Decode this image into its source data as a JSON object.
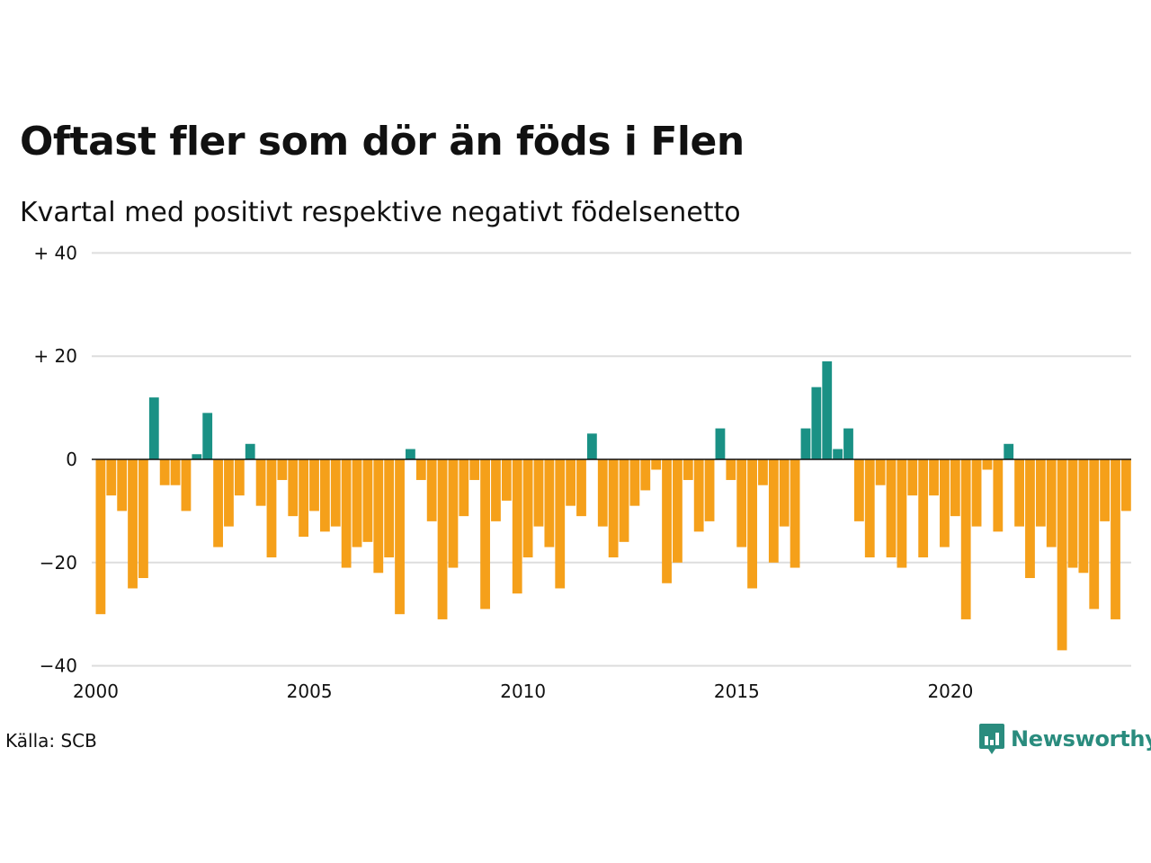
{
  "header": {
    "title": "Oftast fler som dör än föds i Flen",
    "subtitle": "Kvartal med positivt respektive negativt födelsenetto"
  },
  "footer": {
    "source": "Källa: SCB",
    "brand": "Newsworthy"
  },
  "colors": {
    "positive": "#1a9185",
    "negative": "#f5a01a",
    "grid": "#dddddd",
    "brand": "#2a8c7e"
  },
  "chart_data": {
    "type": "bar",
    "y_ticks": [
      {
        "value": 40,
        "label": "+ 40"
      },
      {
        "value": 20,
        "label": "+ 20"
      },
      {
        "value": 0,
        "label": "0"
      },
      {
        "value": -20,
        "label": "−20"
      },
      {
        "value": -40,
        "label": "−40"
      }
    ],
    "x_ticks": [
      {
        "year": 2000,
        "label": "2000"
      },
      {
        "year": 2005,
        "label": "2005"
      },
      {
        "year": 2010,
        "label": "2010"
      },
      {
        "year": 2015,
        "label": "2015"
      },
      {
        "year": 2020,
        "label": "2020"
      }
    ],
    "ylim": [
      -40,
      40
    ],
    "start_year": 2000,
    "values": [
      -30,
      -7,
      -10,
      -25,
      -23,
      12,
      -5,
      -5,
      -10,
      1,
      9,
      -17,
      -13,
      -7,
      3,
      -9,
      -19,
      -4,
      -11,
      -15,
      -10,
      -14,
      -13,
      -21,
      -17,
      -16,
      -22,
      -19,
      -30,
      2,
      -4,
      -12,
      -31,
      -21,
      -11,
      -4,
      -29,
      -12,
      -8,
      -26,
      -19,
      -13,
      -17,
      -25,
      -9,
      -11,
      5,
      -13,
      -19,
      -16,
      -9,
      -6,
      -2,
      -24,
      -20,
      -4,
      -14,
      -12,
      6,
      -4,
      -17,
      -25,
      -5,
      -20,
      -13,
      -21,
      6,
      14,
      19,
      2,
      6,
      -12,
      -19,
      -5,
      -19,
      -21,
      -7,
      -19,
      -7,
      -17,
      -11,
      -31,
      -13,
      -2,
      -14,
      3,
      -13,
      -23,
      -13,
      -17,
      -37,
      -21,
      -22,
      -29,
      -12,
      -31,
      -10
    ]
  }
}
